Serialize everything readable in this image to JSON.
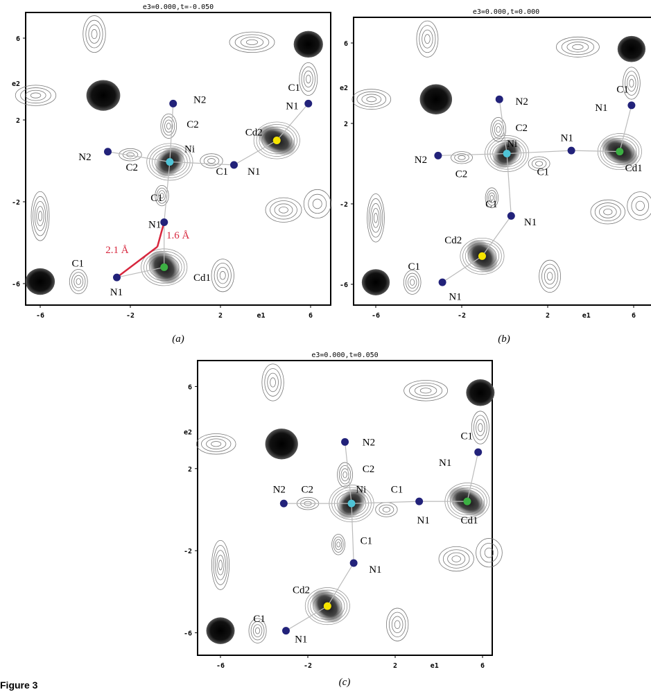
{
  "figure_label": "Figure 3",
  "panels": [
    {
      "title": "e3=0.000,t=-0.050",
      "tag": "(a)",
      "xticks": [
        -6,
        -2,
        2,
        6
      ],
      "yticks": [
        6,
        2,
        -2,
        -6
      ],
      "xlabel": "e1",
      "ylabel": "e2",
      "labels": [
        "N2",
        "C2",
        "Ni",
        "N2",
        "C2",
        "C1",
        "N1",
        "Cd2",
        "C1",
        "N1",
        "C1",
        "N1",
        "Cd1",
        "C1",
        "N1"
      ],
      "notes": [
        "2.1 Å",
        "1.6 Å"
      ]
    },
    {
      "title": "e3=0.000,t=0.000",
      "tag": "(b)",
      "xticks": [
        -6,
        -2,
        2,
        6
      ],
      "yticks": [
        6,
        2,
        -2,
        -6
      ],
      "xlabel": "e1",
      "ylabel": "e2",
      "labels": [
        "N2",
        "C2",
        "Ni",
        "N2",
        "C2",
        "C1",
        "N1",
        "C1",
        "N1",
        "Cd1",
        "C1",
        "N1",
        "Cd2",
        "C1",
        "N1"
      ]
    },
    {
      "title": "e3=0.000,t=0.050",
      "tag": "(c)",
      "xticks": [
        -6,
        -2,
        2,
        6
      ],
      "yticks": [
        6,
        2,
        -2,
        -6
      ],
      "xlabel": "e1",
      "ylabel": "e2",
      "labels": [
        "N2",
        "C2",
        "Ni",
        "N2",
        "C2",
        "C1",
        "N1",
        "C1",
        "N1",
        "Cd1",
        "C1",
        "N1",
        "Cd2",
        "C1",
        "N1"
      ]
    }
  ]
}
